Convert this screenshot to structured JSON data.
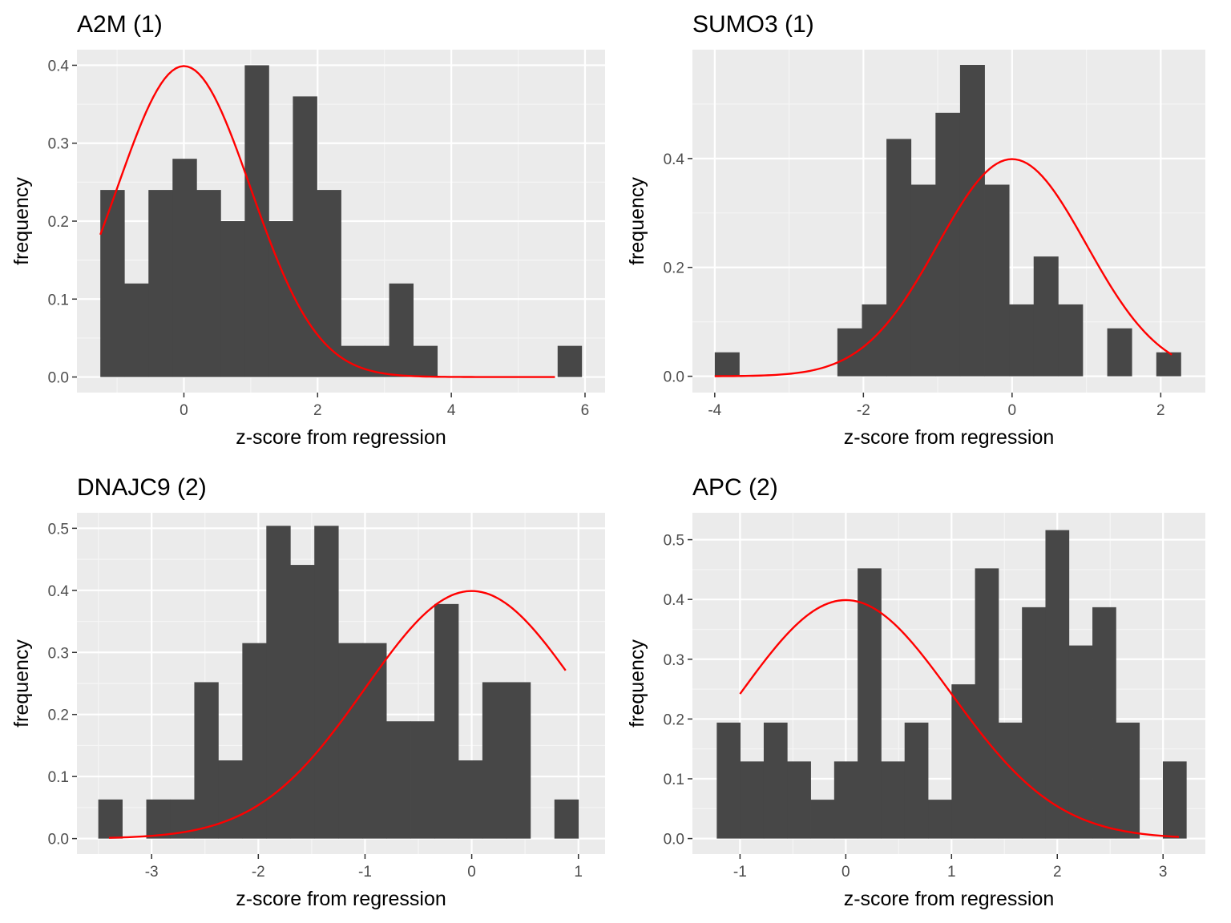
{
  "colors": {
    "panel_background": "#ebebeb",
    "grid_major": "#ffffff",
    "grid_minor": "#f5f5f5",
    "bar_fill": "#474747",
    "curve": "#ff0000",
    "tick_text": "#4d4d4d"
  },
  "chart_data": [
    {
      "type": "bar",
      "subtype": "histogram-with-normal-density",
      "title": "A2M (1)",
      "xlabel": "z-score from regression",
      "ylabel": "frequency",
      "xlim": [
        -1.6,
        6.3
      ],
      "ylim": [
        -0.02,
        0.42
      ],
      "xticks": [
        0,
        2,
        4,
        6
      ],
      "yticks": [
        0.0,
        0.1,
        0.2,
        0.3,
        0.4
      ],
      "xtick_labels": [
        "0",
        "2",
        "4",
        "6"
      ],
      "ytick_labels": [
        "0.0",
        "0.1",
        "0.2",
        "0.3",
        "0.4"
      ],
      "bins": {
        "start": -1.25,
        "width": 0.36,
        "values": [
          0.24,
          0.12,
          0.24,
          0.28,
          0.24,
          0.2,
          0.4,
          0.2,
          0.36,
          0.24,
          0.04,
          0.04,
          0.12,
          0.04,
          0,
          0,
          0,
          0,
          0,
          0.04
        ]
      },
      "curve": {
        "type": "normal-density",
        "mean": 0,
        "sd": 1,
        "x_range": [
          -1.25,
          5.55
        ]
      },
      "grid": true,
      "legend": "none"
    },
    {
      "type": "bar",
      "subtype": "histogram-with-normal-density",
      "title": "SUMO3 (1)",
      "xlabel": "z-score from regression",
      "ylabel": "frequency",
      "xlim": [
        -4.3,
        2.6
      ],
      "ylim": [
        -0.03,
        0.6
      ],
      "xticks": [
        -4,
        -2,
        0,
        2
      ],
      "yticks": [
        0.0,
        0.2,
        0.4
      ],
      "xtick_labels": [
        "-4",
        "-2",
        "0",
        "2"
      ],
      "ytick_labels": [
        "0.0",
        "0.2",
        "0.4"
      ],
      "bins": {
        "start": -4.0,
        "width": 0.33,
        "values": [
          0.044,
          0,
          0,
          0,
          0,
          0.088,
          0.132,
          0.436,
          0.352,
          0.484,
          0.572,
          0.352,
          0.132,
          0.22,
          0.132,
          0,
          0.088,
          0,
          0.044
        ]
      },
      "curve": {
        "type": "normal-density",
        "mean": 0,
        "sd": 1,
        "x_range": [
          -4.0,
          2.15
        ]
      },
      "grid": true,
      "legend": "none"
    },
    {
      "type": "bar",
      "subtype": "histogram-with-normal-density",
      "title": "DNAJC9 (2)",
      "xlabel": "z-score from regression",
      "ylabel": "frequency",
      "xlim": [
        -3.7,
        1.25
      ],
      "ylim": [
        -0.025,
        0.525
      ],
      "xticks": [
        -3,
        -2,
        -1,
        0,
        1
      ],
      "yticks": [
        0.0,
        0.1,
        0.2,
        0.3,
        0.4,
        0.5
      ],
      "xtick_labels": [
        "-3",
        "-2",
        "-1",
        "0",
        "1"
      ],
      "ytick_labels": [
        "0.0",
        "0.1",
        "0.2",
        "0.3",
        "0.4",
        "0.5"
      ],
      "bins": {
        "start": -3.5,
        "width": 0.225,
        "values": [
          0.063,
          0,
          0.063,
          0.063,
          0.252,
          0.126,
          0.315,
          0.504,
          0.441,
          0.504,
          0.315,
          0.315,
          0.189,
          0.189,
          0.378,
          0.126,
          0.252,
          0.252,
          0,
          0.063
        ]
      },
      "curve": {
        "type": "normal-density",
        "mean": 0,
        "sd": 1,
        "x_range": [
          -3.4,
          0.88
        ]
      },
      "grid": true,
      "legend": "none"
    },
    {
      "type": "bar",
      "subtype": "histogram-with-normal-density",
      "title": "APC (2)",
      "xlabel": "z-score from regression",
      "ylabel": "frequency",
      "xlim": [
        -1.45,
        3.4
      ],
      "ylim": [
        -0.026,
        0.545
      ],
      "xticks": [
        -1,
        0,
        1,
        2,
        3
      ],
      "yticks": [
        0.0,
        0.1,
        0.2,
        0.3,
        0.4,
        0.5
      ],
      "xtick_labels": [
        "-1",
        "0",
        "1",
        "2",
        "3"
      ],
      "ytick_labels": [
        "0.0",
        "0.1",
        "0.2",
        "0.3",
        "0.4",
        "0.5"
      ],
      "bins": {
        "start": -1.22,
        "width": 0.222,
        "values": [
          0.194,
          0.129,
          0.194,
          0.129,
          0.065,
          0.129,
          0.452,
          0.129,
          0.194,
          0.065,
          0.258,
          0.452,
          0.194,
          0.387,
          0.516,
          0.323,
          0.387,
          0.194,
          0,
          0.129
        ]
      },
      "curve": {
        "type": "normal-density",
        "mean": 0,
        "sd": 1,
        "x_range": [
          -1.0,
          3.15
        ]
      },
      "grid": true,
      "legend": "none"
    }
  ]
}
